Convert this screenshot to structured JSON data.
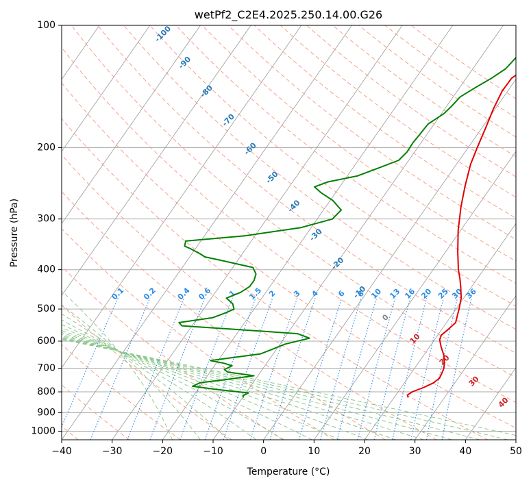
{
  "chart_data": {
    "type": "line",
    "title": "wetPf2_C2E4.2025.250.14.00.G26",
    "xlabel": "Temperature (°C)",
    "ylabel": "Pressure (hPa)",
    "xlim": [
      -40,
      50
    ],
    "ylim": [
      1050,
      100
    ],
    "y_scale": "log",
    "grid": true,
    "x_ticks": [
      -40,
      -30,
      -20,
      -10,
      0,
      10,
      20,
      30,
      40,
      50
    ],
    "y_ticks": [
      100,
      200,
      300,
      400,
      500,
      600,
      700,
      800,
      900,
      1000
    ],
    "series": [
      {
        "color": "#e00000",
        "points": [
          [
            826,
            22.8
          ],
          [
            815,
            22.3
          ],
          [
            800,
            22.8
          ],
          [
            780,
            24.5
          ],
          [
            760,
            25.8
          ],
          [
            740,
            26.3
          ],
          [
            720,
            26.1
          ],
          [
            700,
            25.8
          ],
          [
            680,
            25.2
          ],
          [
            650,
            24.0
          ],
          [
            620,
            22.3
          ],
          [
            595,
            21.0
          ],
          [
            580,
            20.7
          ],
          [
            560,
            21.3
          ],
          [
            540,
            21.8
          ],
          [
            520,
            21.2
          ],
          [
            500,
            20.6
          ],
          [
            470,
            19.5
          ],
          [
            440,
            17.8
          ],
          [
            420,
            16.5
          ],
          [
            400,
            15.0
          ],
          [
            360,
            12.3
          ],
          [
            320,
            9.5
          ],
          [
            280,
            6.8
          ],
          [
            250,
            4.8
          ],
          [
            220,
            2.8
          ],
          [
            200,
            1.8
          ],
          [
            180,
            0.8
          ],
          [
            160,
            -0.4
          ],
          [
            145,
            -1.1
          ],
          [
            135,
            -1.0
          ],
          [
            128,
            0.3
          ],
          [
            122,
            2.2
          ],
          [
            115,
            3.8
          ],
          [
            108,
            4.6
          ],
          [
            100,
            5.2
          ]
        ]
      },
      {
        "color": "#008000",
        "points": [
          [
            826,
            -9.8
          ],
          [
            818,
            -10.2
          ],
          [
            805,
            -9.5
          ],
          [
            790,
            -16.0
          ],
          [
            775,
            -21.5
          ],
          [
            760,
            -20.5
          ],
          [
            745,
            -15.5
          ],
          [
            730,
            -10.8
          ],
          [
            715,
            -16.5
          ],
          [
            705,
            -17.5
          ],
          [
            690,
            -16.5
          ],
          [
            680,
            -18.5
          ],
          [
            670,
            -21.5
          ],
          [
            660,
            -18.0
          ],
          [
            645,
            -12.5
          ],
          [
            630,
            -11.0
          ],
          [
            610,
            -9.0
          ],
          [
            590,
            -5.0
          ],
          [
            575,
            -8.0
          ],
          [
            562,
            -20.0
          ],
          [
            550,
            -32.0
          ],
          [
            540,
            -33.0
          ],
          [
            525,
            -27.0
          ],
          [
            510,
            -25.0
          ],
          [
            500,
            -24.0
          ],
          [
            485,
            -25.0
          ],
          [
            470,
            -27.0
          ],
          [
            455,
            -25.0
          ],
          [
            440,
            -24.0
          ],
          [
            425,
            -24.0
          ],
          [
            410,
            -24.5
          ],
          [
            395,
            -26.0
          ],
          [
            380,
            -33.0
          ],
          [
            372,
            -37.0
          ],
          [
            365,
            -38.5
          ],
          [
            355,
            -41.0
          ],
          [
            350,
            -42.5
          ],
          [
            340,
            -43.0
          ],
          [
            330,
            -32.0
          ],
          [
            315,
            -22.0
          ],
          [
            300,
            -17.0
          ],
          [
            285,
            -16.5
          ],
          [
            270,
            -19.5
          ],
          [
            258,
            -23.0
          ],
          [
            250,
            -25.0
          ],
          [
            243,
            -23.0
          ],
          [
            235,
            -18.0
          ],
          [
            225,
            -15.0
          ],
          [
            215,
            -12.0
          ],
          [
            205,
            -11.5
          ],
          [
            195,
            -11.6
          ],
          [
            185,
            -11.4
          ],
          [
            175,
            -11.2
          ],
          [
            165,
            -9.5
          ],
          [
            158,
            -9.0
          ],
          [
            150,
            -8.6
          ],
          [
            142,
            -6.8
          ],
          [
            135,
            -5.0
          ],
          [
            128,
            -3.5
          ],
          [
            120,
            -3.0
          ],
          [
            112,
            -1.5
          ],
          [
            105,
            0.0
          ],
          [
            100,
            0.8
          ]
        ]
      }
    ],
    "dry_adiabat_labels": [
      "-100",
      "-90",
      "-80",
      "-70",
      "-60",
      "-50",
      "-40",
      "-30",
      "-20",
      "-10"
    ],
    "moist_adiabat_labels": [
      "0",
      "10",
      "20",
      "30",
      "40"
    ],
    "mixing_ratio_labels": [
      "0.1",
      "0.2",
      "0.4",
      "0.6",
      "1",
      "1.5",
      "2",
      "3",
      "4",
      "6",
      "8",
      "10",
      "13",
      "16",
      "20",
      "25",
      "30",
      "36"
    ],
    "colors": {
      "dry_adiabat": "#f5a08a",
      "moist_adiabat": "#8ec98e",
      "mixing_ratio": "#3a8ee6",
      "isotherm": "#999999",
      "isobar": "#aaaaaa",
      "dry_label": "#2a7ab8",
      "moist_label": "#d02020",
      "mixing_label": "#2a8ee6",
      "zero_label": "#888888"
    }
  }
}
